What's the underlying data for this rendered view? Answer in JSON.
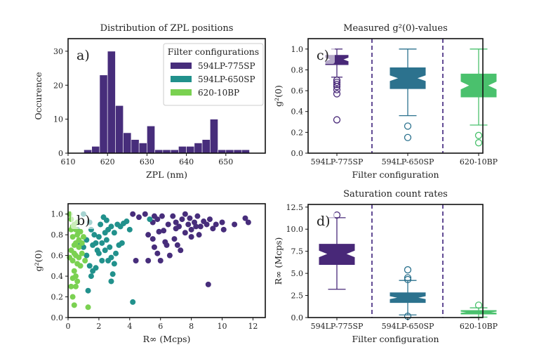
{
  "colors": {
    "purple": "#472d7b",
    "teal": "#21918c",
    "green": "#7ad151",
    "box_purple": "#482878",
    "box_teal": "#2c728e",
    "box_green": "#4ac16d"
  },
  "chart_data": [
    {
      "id": "a",
      "type": "bar",
      "title": "Distribution of ZPL positions",
      "panel_label": "a)",
      "xlabel": "ZPL (nm)",
      "ylabel": "Occurence",
      "xlim": [
        610,
        660
      ],
      "ylim": [
        0,
        33.7
      ],
      "xticks": [
        610,
        620,
        630,
        640,
        650
      ],
      "yticks": [
        0,
        10,
        20,
        30
      ],
      "bin_edges": [
        614,
        616,
        618,
        620,
        622,
        624,
        626,
        628,
        630,
        632,
        634,
        636,
        638,
        640,
        642,
        644,
        646,
        648,
        650,
        652,
        654,
        656
      ],
      "counts": [
        1,
        2,
        23,
        30,
        14,
        6,
        4,
        3,
        8,
        1,
        1,
        1,
        2,
        2,
        3,
        4,
        10,
        1,
        1,
        1,
        1
      ],
      "legend": {
        "title": "Filter configurations",
        "placement": "top-right",
        "entries": [
          "594LP-775SP",
          "594LP-650SP",
          "620-10BP"
        ]
      }
    },
    {
      "id": "c",
      "type": "box",
      "title": "Measured g²(0)-values",
      "panel_label": "c)",
      "xlabel": "Filter configuration",
      "ylabel": "g²(0)",
      "ylim": [
        0,
        1.1
      ],
      "yticks": [
        "0.0",
        "0.2",
        "0.4",
        "0.6",
        "0.8",
        "1.0"
      ],
      "categories": [
        "594LP-775SP",
        "594LP-650SP",
        "620-10BP"
      ],
      "boxes": [
        {
          "q1": 0.85,
          "q3": 0.94,
          "median": 0.9,
          "notch": [
            0.88,
            0.92
          ],
          "whisker_low": 0.73,
          "whisker_high": 1.0,
          "fliers": [
            0.7,
            0.68,
            0.66,
            0.64,
            0.61,
            0.57,
            0.32
          ]
        },
        {
          "q1": 0.62,
          "q3": 0.82,
          "median": 0.72,
          "notch": [
            0.69,
            0.75
          ],
          "whisker_low": 0.36,
          "whisker_high": 1.0,
          "fliers": [
            0.26,
            0.15
          ]
        },
        {
          "q1": 0.54,
          "q3": 0.76,
          "median": 0.65,
          "notch": [
            0.61,
            0.69
          ],
          "whisker_low": 0.27,
          "whisker_high": 1.0,
          "fliers": [
            0.17,
            0.1
          ]
        }
      ]
    },
    {
      "id": "b",
      "type": "scatter",
      "panel_label": "b)",
      "xlabel": "R∞ (Mcps)",
      "ylabel": "g²(0)",
      "xlim": [
        0,
        12.8
      ],
      "ylim": [
        0,
        1.1
      ],
      "xticks": [
        0,
        2,
        4,
        6,
        8,
        10,
        12
      ],
      "yticks": [
        "0.0",
        "0.2",
        "0.4",
        "0.6",
        "0.8",
        "1.0"
      ],
      "series": [
        {
          "name": "594LP-775SP",
          "points": [
            [
              4.2,
              1.0
            ],
            [
              4.6,
              0.97
            ],
            [
              5.0,
              1.0
            ],
            [
              5.5,
              0.92
            ],
            [
              5.6,
              0.98
            ],
            [
              5.8,
              0.95
            ],
            [
              5.2,
              0.8
            ],
            [
              5.5,
              0.76
            ],
            [
              5.6,
              0.68
            ],
            [
              5.8,
              0.62
            ],
            [
              6.0,
              0.55
            ],
            [
              6.3,
              0.73
            ],
            [
              6.6,
              0.6
            ],
            [
              6.4,
              0.7
            ],
            [
              6.5,
              0.9
            ],
            [
              6.8,
              0.98
            ],
            [
              7.0,
              0.92
            ],
            [
              7.2,
              0.88
            ],
            [
              7.4,
              0.95
            ],
            [
              7.6,
              1.0
            ],
            [
              7.8,
              0.9
            ],
            [
              8.0,
              0.85
            ],
            [
              8.2,
              0.92
            ],
            [
              8.4,
              0.98
            ],
            [
              8.6,
              0.88
            ],
            [
              8.8,
              0.93
            ],
            [
              9.0,
              0.9
            ],
            [
              9.2,
              0.95
            ],
            [
              9.4,
              0.86
            ],
            [
              9.6,
              0.9
            ],
            [
              9.1,
              0.32
            ],
            [
              7.1,
              0.7
            ],
            [
              7.3,
              0.65
            ],
            [
              7.6,
              0.82
            ],
            [
              8.0,
              0.78
            ],
            [
              10.0,
              0.92
            ],
            [
              10.8,
              0.9
            ],
            [
              11.5,
              0.96
            ],
            [
              11.7,
              0.92
            ],
            [
              10.1,
              0.85
            ],
            [
              6.2,
              0.84
            ],
            [
              6.9,
              0.76
            ],
            [
              5.2,
              0.55
            ],
            [
              4.4,
              0.55
            ],
            [
              5.9,
              0.83
            ],
            [
              8.5,
              0.8
            ],
            [
              7.9,
              0.96
            ],
            [
              6.1,
              0.98
            ],
            [
              7.0,
              0.86
            ],
            [
              8.3,
              0.88
            ]
          ]
        },
        {
          "name": "594LP-650SP",
          "points": [
            [
              1.0,
              1.0
            ],
            [
              1.4,
              0.92
            ],
            [
              1.5,
              0.85
            ],
            [
              1.7,
              0.8
            ],
            [
              1.8,
              0.72
            ],
            [
              2.0,
              0.78
            ],
            [
              2.1,
              0.9
            ],
            [
              2.3,
              0.97
            ],
            [
              2.5,
              0.94
            ],
            [
              2.6,
              0.85
            ],
            [
              2.8,
              0.88
            ],
            [
              3.0,
              0.82
            ],
            [
              3.2,
              0.9
            ],
            [
              3.4,
              0.88
            ],
            [
              3.6,
              0.91
            ],
            [
              3.8,
              0.93
            ],
            [
              4.0,
              0.85
            ],
            [
              5.3,
              0.95
            ],
            [
              1.2,
              0.6
            ],
            [
              1.4,
              0.5
            ],
            [
              1.6,
              0.45
            ],
            [
              1.8,
              0.48
            ],
            [
              2.0,
              0.62
            ],
            [
              2.2,
              0.55
            ],
            [
              2.4,
              0.65
            ],
            [
              2.6,
              0.55
            ],
            [
              2.8,
              0.58
            ],
            [
              3.0,
              0.52
            ],
            [
              3.1,
              0.62
            ],
            [
              3.3,
              0.7
            ],
            [
              3.5,
              0.72
            ],
            [
              1.0,
              0.68
            ],
            [
              1.2,
              0.75
            ],
            [
              2.5,
              0.75
            ],
            [
              2.7,
              0.68
            ],
            [
              2.9,
              0.42
            ],
            [
              2.8,
              0.35
            ],
            [
              1.3,
              0.26
            ],
            [
              4.2,
              0.15
            ],
            [
              1.5,
              0.4
            ],
            [
              2.2,
              0.72
            ],
            [
              1.9,
              0.65
            ],
            [
              0.6,
              0.85
            ],
            [
              0.8,
              0.7
            ],
            [
              2.4,
              0.82
            ],
            [
              1.6,
              0.7
            ]
          ]
        },
        {
          "name": "620-10BP",
          "points": [
            [
              0.1,
              1.0
            ],
            [
              0.2,
              0.95
            ],
            [
              0.4,
              0.9
            ],
            [
              0.5,
              0.85
            ],
            [
              0.6,
              0.8
            ],
            [
              0.3,
              0.78
            ],
            [
              0.8,
              0.83
            ],
            [
              1.0,
              0.78
            ],
            [
              0.4,
              0.7
            ],
            [
              0.7,
              0.68
            ],
            [
              0.9,
              0.62
            ],
            [
              0.2,
              0.65
            ],
            [
              0.5,
              0.6
            ],
            [
              0.3,
              0.55
            ],
            [
              0.6,
              0.52
            ],
            [
              0.8,
              0.5
            ],
            [
              0.1,
              0.58
            ],
            [
              0.4,
              0.45
            ],
            [
              0.5,
              0.4
            ],
            [
              0.3,
              0.38
            ],
            [
              0.6,
              0.35
            ],
            [
              0.2,
              0.3
            ],
            [
              0.5,
              0.3
            ],
            [
              0.3,
              0.2
            ],
            [
              0.4,
              0.12
            ],
            [
              1.3,
              0.1
            ],
            [
              0.7,
              0.75
            ],
            [
              0.9,
              0.72
            ],
            [
              0.2,
              0.85
            ],
            [
              0.6,
              0.92
            ],
            [
              0.4,
              0.62
            ],
            [
              0.7,
              0.58
            ],
            [
              1.1,
              0.55
            ],
            [
              0.5,
              0.72
            ],
            [
              0.3,
              0.88
            ]
          ]
        }
      ]
    },
    {
      "id": "d",
      "type": "box",
      "title": "Saturation count rates",
      "panel_label": "d)",
      "xlabel": "Filter configuration",
      "ylabel": "R∞ (Mcps)",
      "ylim": [
        0,
        12.8
      ],
      "yticks": [
        "0.0",
        "2.5",
        "5.0",
        "7.5",
        "10.0",
        "12.5"
      ],
      "categories": [
        "594LP-775SP",
        "594LP-650SP",
        "620-10BP"
      ],
      "boxes": [
        {
          "q1": 6.0,
          "q3": 8.3,
          "median": 7.2,
          "notch": [
            6.8,
            7.6
          ],
          "whisker_low": 3.2,
          "whisker_high": 11.3,
          "fliers": [
            11.6
          ]
        },
        {
          "q1": 1.7,
          "q3": 2.8,
          "median": 2.25,
          "notch": [
            2.05,
            2.45
          ],
          "whisker_low": 0.3,
          "whisker_high": 4.2,
          "fliers": [
            5.4,
            4.5,
            4.3,
            0.15
          ]
        },
        {
          "q1": 0.4,
          "q3": 0.8,
          "median": 0.6,
          "notch": [
            0.5,
            0.7
          ],
          "whisker_low": 0.05,
          "whisker_high": 1.1,
          "fliers": [
            1.4
          ]
        }
      ]
    }
  ]
}
